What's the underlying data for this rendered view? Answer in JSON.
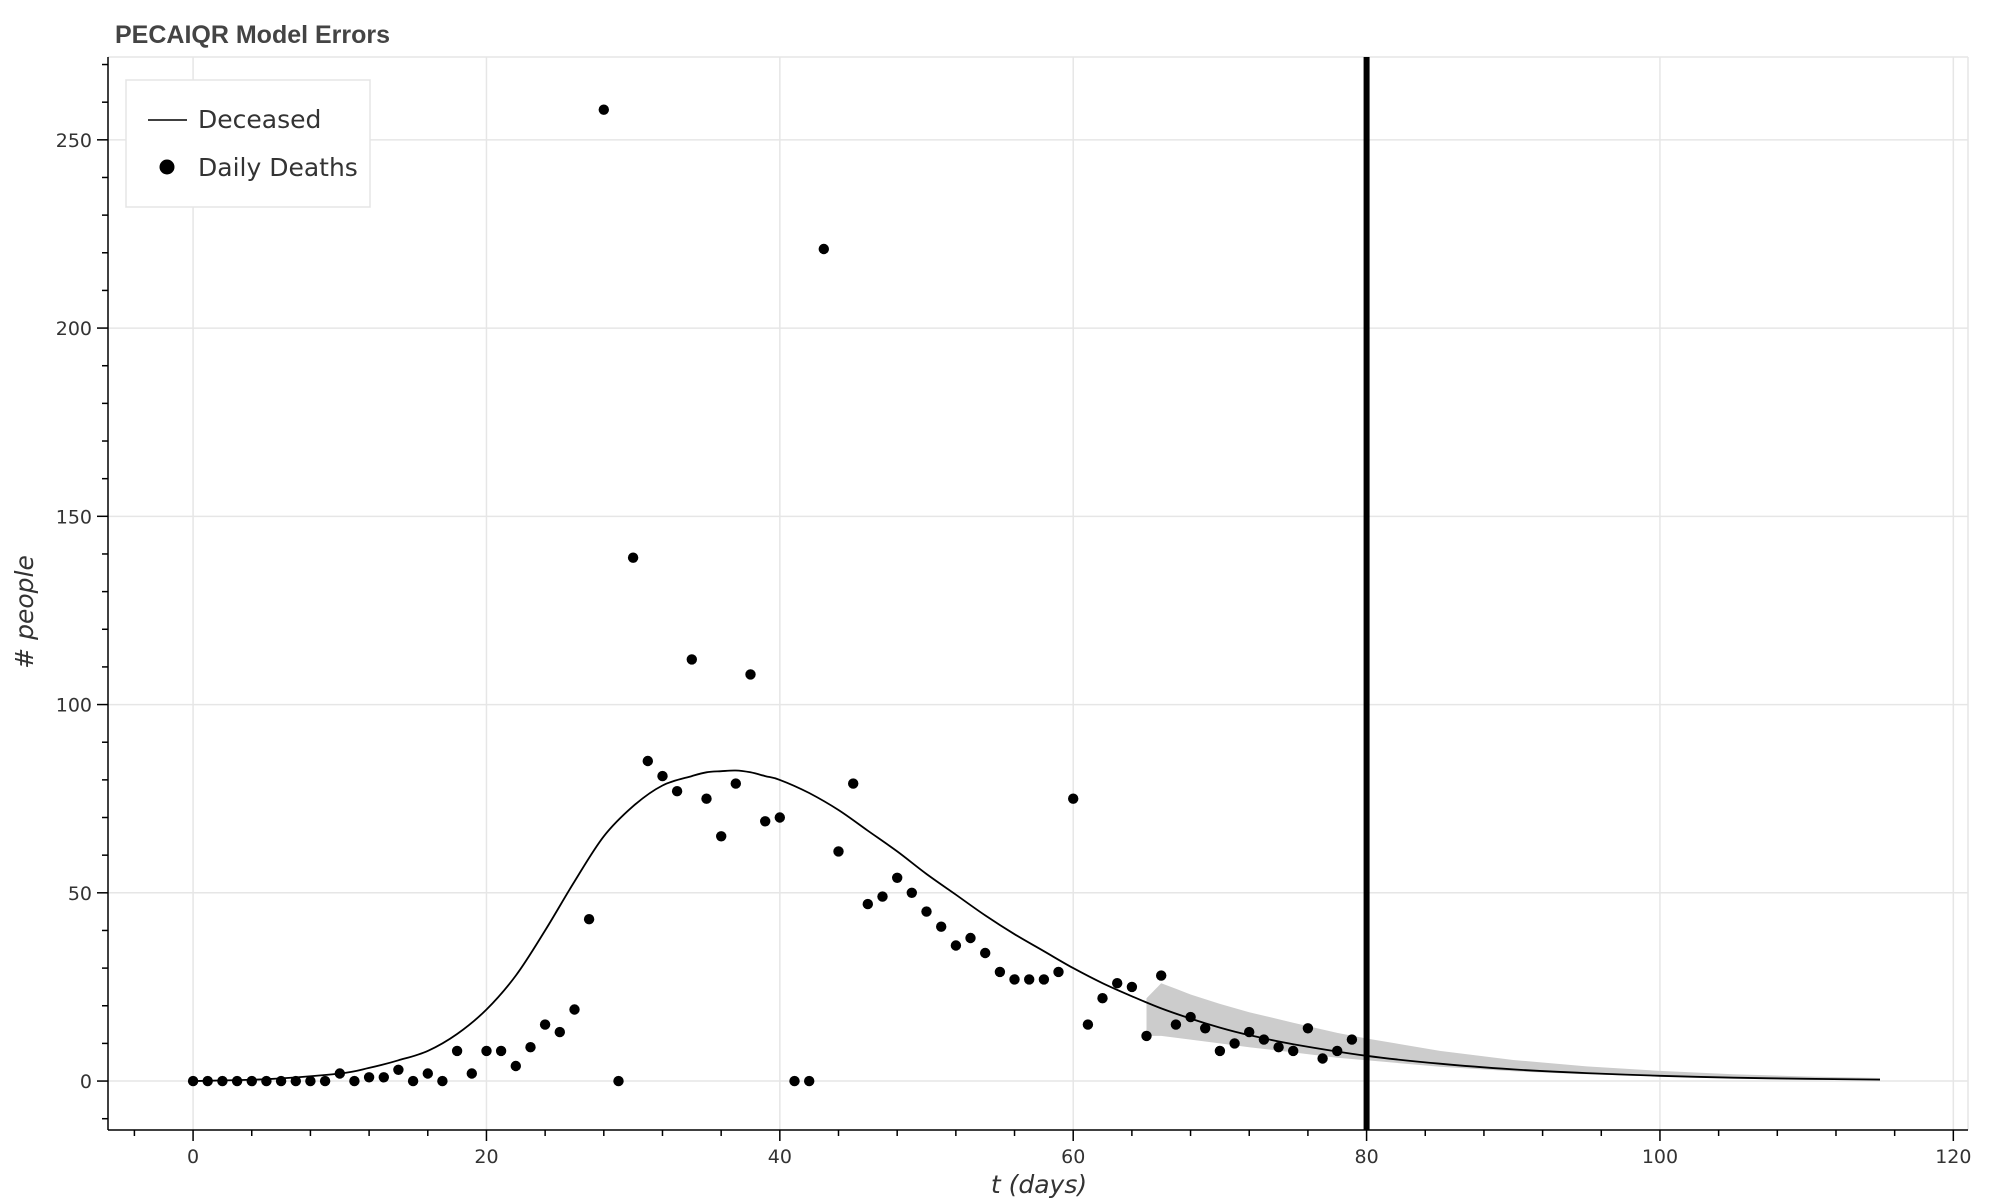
{
  "chart_data": {
    "type": "scatter",
    "title": "PECAIQR Model Errors",
    "xlabel": "t (days)",
    "ylabel": "# people",
    "xlim": [
      -5.8,
      121
    ],
    "ylim": [
      -13,
      272
    ],
    "x_ticks": [
      0,
      20,
      40,
      60,
      80,
      100,
      120
    ],
    "y_ticks": [
      0,
      50,
      100,
      150,
      200,
      250
    ],
    "grid": true,
    "legend_position": "top-left",
    "vertical_marker": {
      "x": 80,
      "color": "#000000"
    },
    "series": [
      {
        "name": "Deceased",
        "kind": "line",
        "color": "#000000",
        "x": [
          0,
          5,
          10,
          12,
          14,
          16,
          18,
          20,
          22,
          24,
          26,
          28,
          30,
          32,
          34,
          35,
          36,
          37,
          38,
          39,
          40,
          42,
          44,
          46,
          48,
          50,
          52,
          54,
          56,
          58,
          60,
          62,
          64,
          66,
          68,
          70,
          72,
          75,
          80,
          85,
          90,
          95,
          100,
          105,
          110,
          115
        ],
        "y": [
          0,
          0.5,
          2,
          3.5,
          5.5,
          8,
          12.5,
          19,
          28,
          40,
          53,
          65,
          73,
          78.5,
          81,
          82,
          82.3,
          82.5,
          82,
          81,
          80,
          76.5,
          72,
          66.5,
          61,
          55,
          49.5,
          44,
          39,
          34.5,
          30,
          26,
          22.5,
          19.3,
          16.6,
          14.2,
          12.2,
          9.8,
          6.7,
          4.6,
          3.1,
          2.1,
          1.4,
          0.9,
          0.6,
          0.4
        ]
      },
      {
        "name": "Daily Deaths",
        "kind": "scatter",
        "color": "#000000",
        "x": [
          0,
          1,
          2,
          3,
          4,
          5,
          6,
          7,
          8,
          9,
          10,
          11,
          12,
          13,
          14,
          15,
          16,
          17,
          18,
          19,
          20,
          21,
          22,
          23,
          24,
          25,
          26,
          27,
          28,
          29,
          30,
          31,
          32,
          33,
          34,
          35,
          36,
          37,
          38,
          39,
          40,
          41,
          42,
          43,
          44,
          45,
          46,
          47,
          48,
          49,
          50,
          51,
          52,
          53,
          54,
          55,
          56,
          57,
          58,
          59,
          60,
          61,
          62,
          63,
          64,
          65,
          66,
          67,
          68,
          69,
          70,
          71,
          72,
          73,
          74,
          75,
          76,
          77,
          78,
          79
        ],
        "y": [
          0,
          0,
          0,
          0,
          0,
          0,
          0,
          0,
          0,
          0,
          2,
          0,
          1,
          1,
          3,
          0,
          2,
          0,
          8,
          2,
          8,
          8,
          4,
          9,
          15,
          13,
          19,
          43,
          258,
          0,
          139,
          85,
          81,
          77,
          112,
          75,
          65,
          79,
          108,
          69,
          70,
          0,
          0,
          221,
          61,
          79,
          47,
          49,
          54,
          50,
          45,
          41,
          36,
          38,
          34,
          29,
          27,
          27,
          27,
          29,
          75,
          15,
          22,
          26,
          25,
          12,
          28,
          15,
          17,
          14,
          8,
          10,
          13,
          11,
          9,
          8,
          14,
          6,
          8,
          11
        ]
      }
    ],
    "uncertainty_band": {
      "color": "#cccccc",
      "x": [
        65,
        66,
        67,
        68,
        70,
        72,
        75,
        78,
        80,
        85,
        90,
        95,
        100,
        105,
        110,
        115
      ],
      "lower": [
        12,
        12,
        11.5,
        11,
        10,
        9,
        7.6,
        6.2,
        5.5,
        3.8,
        2.6,
        1.8,
        1.2,
        0.8,
        0.5,
        0.3
      ],
      "upper": [
        22,
        26,
        24.5,
        23,
        20.5,
        18.3,
        15.5,
        12.8,
        11.3,
        8,
        5.6,
        3.9,
        2.7,
        1.8,
        1.2,
        0.8
      ]
    }
  }
}
